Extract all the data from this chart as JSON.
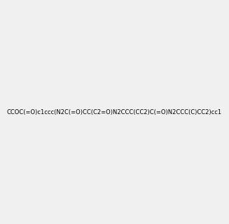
{
  "smiles": "CCOC(=O)c1ccc(N2C(=O)CC(C2=O)N2CCC(CC2)C(=O)N2CCC(C)CC2)cc1",
  "image_size": 300,
  "background_color": "#f0f0f0"
}
